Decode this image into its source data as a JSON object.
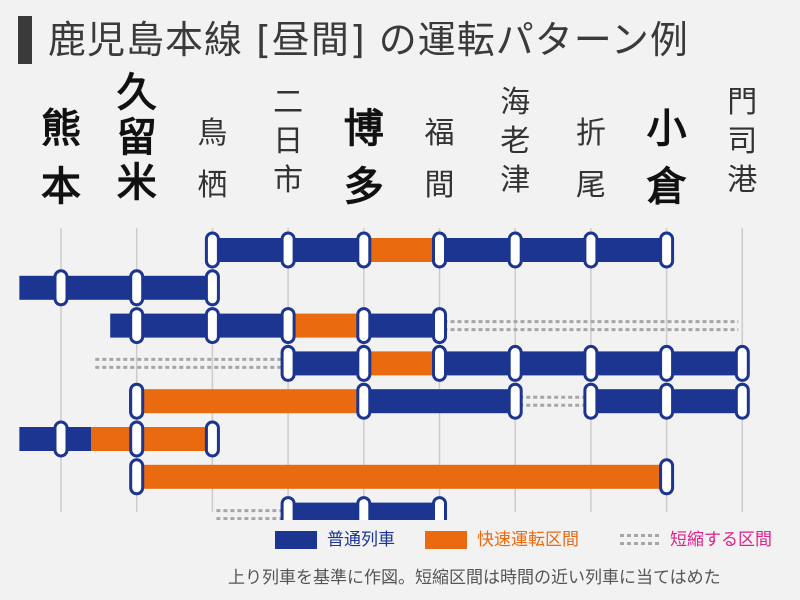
{
  "title": "鹿児島本線 [昼間] の運転パターン例",
  "stations": [
    {
      "name": "熊本",
      "bold": true
    },
    {
      "name": "久留米",
      "bold": true
    },
    {
      "name": "鳥栖",
      "bold": false
    },
    {
      "name": "二日市",
      "bold": false
    },
    {
      "name": "博多",
      "bold": true
    },
    {
      "name": "福間",
      "bold": false
    },
    {
      "name": "海老津",
      "bold": false
    },
    {
      "name": "折尾",
      "bold": false
    },
    {
      "name": "小倉",
      "bold": true
    },
    {
      "name": "門司港",
      "bold": false
    }
  ],
  "colors": {
    "local": "#1b3590",
    "rapid": "#ea6a10",
    "dotted": "#a6a6a6",
    "gridline": "#cccccc",
    "stop_fill": "#ffffff"
  },
  "legend": {
    "local_label": "普通列車",
    "rapid_label": "快速運転区間",
    "dotted_label": "短縮する区間",
    "dotted_label_color": "#e0208a"
  },
  "footnote": "上り列車を基準に作図。短縮区間は時間の近い列車に当てはめた",
  "trains": [
    {
      "segments": [
        {
          "type": "local",
          "from": 2,
          "to": 4
        },
        {
          "type": "rapid",
          "from": 4,
          "to": 5
        },
        {
          "type": "local",
          "from": 5,
          "to": 8
        }
      ],
      "dotted": [],
      "stops": [
        2,
        3,
        4,
        5,
        6,
        7,
        8
      ]
    },
    {
      "segments": [
        {
          "type": "local",
          "from": -0.55,
          "to": 2
        }
      ],
      "dotted": [],
      "stops": [
        0,
        1,
        2
      ]
    },
    {
      "segments": [
        {
          "type": "local",
          "from": 0.65,
          "to": 3
        },
        {
          "type": "rapid",
          "from": 3,
          "to": 4
        },
        {
          "type": "local",
          "from": 4,
          "to": 5
        }
      ],
      "dotted": [
        {
          "from": 5,
          "to": 9
        }
      ],
      "stops": [
        1,
        2,
        3,
        4,
        5
      ]
    },
    {
      "segments": [
        {
          "type": "local",
          "from": 3,
          "to": 4
        },
        {
          "type": "rapid",
          "from": 4,
          "to": 5
        },
        {
          "type": "local",
          "from": 5,
          "to": 9
        }
      ],
      "dotted": [
        {
          "from": 0.4,
          "to": 3
        }
      ],
      "stops": [
        3,
        4,
        5,
        6,
        7,
        8,
        9
      ]
    },
    {
      "segments": [
        {
          "type": "local",
          "from": 0.9,
          "to": 1
        },
        {
          "type": "rapid",
          "from": 1,
          "to": 4
        },
        {
          "type": "local",
          "from": 4,
          "to": 6
        }
      ],
      "segments_b": [
        {
          "type": "local",
          "from": 7,
          "to": 9
        }
      ],
      "dotted": [
        {
          "from": 6,
          "to": 7
        }
      ],
      "stops": [
        1,
        4,
        6,
        7,
        8,
        9
      ]
    },
    {
      "segments": [
        {
          "type": "local",
          "from": -0.55,
          "to": 0.4
        },
        {
          "type": "rapid",
          "from": 0.4,
          "to": 2
        }
      ],
      "dotted": [],
      "stops": [
        0,
        1,
        2
      ]
    },
    {
      "segments": [
        {
          "type": "rapid",
          "from": 1,
          "to": 8
        }
      ],
      "dotted": [],
      "stops": [
        1,
        8
      ]
    },
    {
      "segments": [
        {
          "type": "local",
          "from": 3,
          "to": 5
        }
      ],
      "dotted": [
        {
          "from": 2,
          "to": 3
        }
      ],
      "stops": [
        3,
        4,
        5
      ]
    }
  ]
}
